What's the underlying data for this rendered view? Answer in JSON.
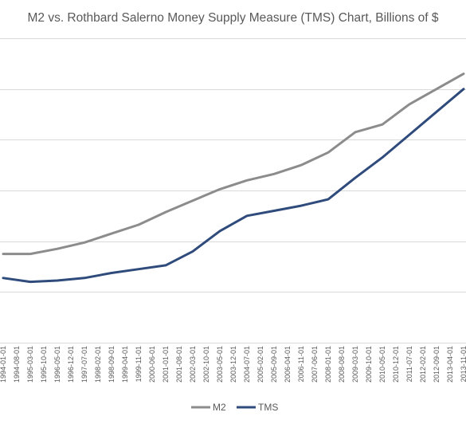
{
  "chart_data": {
    "type": "line",
    "title": "M2 vs. Rothbard Salerno Money Supply Measure (TMS) Chart, Billions of $",
    "xlabel": "",
    "ylabel": "",
    "ylim": [
      0,
      12000
    ],
    "y_gridlines": [
      2000,
      4000,
      6000,
      8000,
      10000,
      12000
    ],
    "grid": true,
    "legend_position": "bottom",
    "x_tick_labels": [
      "1994-01-01",
      "1994-08-01",
      "1995-03-01",
      "1995-10-01",
      "1996-05-01",
      "1996-12-01",
      "1997-07-01",
      "1998-02-01",
      "1998-09-01",
      "1999-04-01",
      "1999-11-01",
      "2000-06-01",
      "2001-01-01",
      "2001-08-01",
      "2002-03-01",
      "2002-10-01",
      "2003-05-01",
      "2003-12-01",
      "2004-07-01",
      "2005-02-01",
      "2005-09-01",
      "2006-04-01",
      "2006-11-01",
      "2007-06-01",
      "2008-01-01",
      "2008-08-01",
      "2009-03-01",
      "2009-10-01",
      "2010-05-01",
      "2010-12-01",
      "2011-07-01",
      "2012-02-01",
      "2012-09-01",
      "2013-04-01",
      "2013-11-01"
    ],
    "series": [
      {
        "name": "M2",
        "color": "#8c8c8c",
        "x": [
          "1994-01-01",
          "1995-03-01",
          "1996-05-01",
          "1997-07-01",
          "1998-09-01",
          "1999-11-01",
          "2001-01-01",
          "2002-03-01",
          "2003-05-01",
          "2004-07-01",
          "2005-09-01",
          "2006-11-01",
          "2008-01-01",
          "2009-03-01",
          "2010-05-01",
          "2011-07-01",
          "2012-09-01",
          "2013-11-01"
        ],
        "values": [
          3500,
          3500,
          3700,
          3950,
          4300,
          4650,
          5150,
          5600,
          6050,
          6400,
          6650,
          7000,
          7500,
          8300,
          8600,
          9400,
          10000,
          10600
        ]
      },
      {
        "name": "TMS",
        "color": "#2f4b7c",
        "x": [
          "1994-01-01",
          "1995-03-01",
          "1996-05-01",
          "1997-07-01",
          "1998-09-01",
          "1999-11-01",
          "2001-01-01",
          "2002-03-01",
          "2003-05-01",
          "2004-07-01",
          "2005-09-01",
          "2006-11-01",
          "2008-01-01",
          "2009-03-01",
          "2010-05-01",
          "2011-07-01",
          "2012-09-01",
          "2013-11-01"
        ],
        "values": [
          2550,
          2400,
          2450,
          2550,
          2750,
          2900,
          3050,
          3600,
          4400,
          5000,
          5200,
          5400,
          5650,
          6500,
          7300,
          8200,
          9100,
          10000
        ]
      }
    ]
  }
}
